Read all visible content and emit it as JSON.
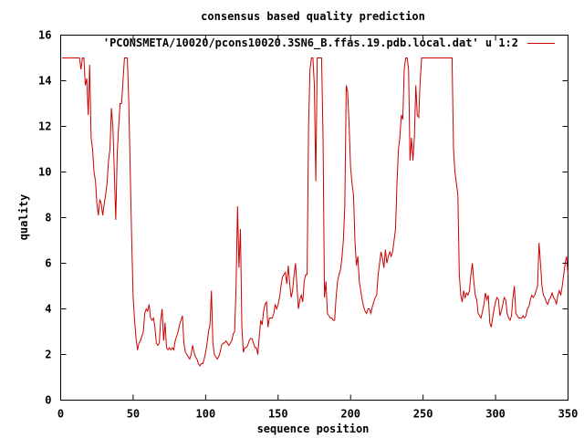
{
  "chart_data": {
    "type": "line",
    "title": "consensus based quality prediction",
    "xlabel": "sequence position",
    "ylabel": "quality",
    "xlim": [
      0,
      350
    ],
    "ylim": [
      0,
      16
    ],
    "x_ticks": [
      0,
      50,
      100,
      150,
      200,
      250,
      300,
      350
    ],
    "y_ticks": [
      0,
      2,
      4,
      6,
      8,
      10,
      12,
      14,
      16
    ],
    "legend_position": "top-right",
    "line_color": "#cc0000",
    "series": [
      {
        "name": "'PCONSMETA/10020/pcons10020.3SN6_B.ffas.19.pdb.local.dat' u 1:2",
        "points": [
          [
            1,
            15
          ],
          [
            13,
            15
          ],
          [
            14,
            14.5
          ],
          [
            15,
            15
          ],
          [
            16,
            15
          ],
          [
            17,
            13.8
          ],
          [
            18,
            14.1
          ],
          [
            19,
            12.5
          ],
          [
            20,
            14.7
          ],
          [
            21,
            11.5
          ],
          [
            22,
            11.0
          ],
          [
            23,
            10.0
          ],
          [
            24,
            9.6
          ],
          [
            25,
            8.6
          ],
          [
            26,
            8.1
          ],
          [
            27,
            8.8
          ],
          [
            28,
            8.6
          ],
          [
            29,
            8.1
          ],
          [
            30,
            8.6
          ],
          [
            31,
            9.0
          ],
          [
            32,
            9.5
          ],
          [
            33,
            10.5
          ],
          [
            34,
            11.0
          ],
          [
            35,
            12.8
          ],
          [
            36,
            12.0
          ],
          [
            37,
            10.0
          ],
          [
            38,
            7.9
          ],
          [
            39,
            10.8
          ],
          [
            40,
            12.0
          ],
          [
            41,
            13.0
          ],
          [
            42,
            13.0
          ],
          [
            43,
            14.0
          ],
          [
            44,
            15
          ],
          [
            46,
            15
          ],
          [
            47,
            13.0
          ],
          [
            48,
            10.0
          ],
          [
            49,
            7.0
          ],
          [
            50,
            4.5
          ],
          [
            51,
            3.5
          ],
          [
            52,
            2.7
          ],
          [
            53,
            2.2
          ],
          [
            54,
            2.5
          ],
          [
            55,
            2.6
          ],
          [
            56,
            2.8
          ],
          [
            57,
            3.0
          ],
          [
            58,
            3.8
          ],
          [
            59,
            4.0
          ],
          [
            60,
            3.9
          ],
          [
            61,
            4.2
          ],
          [
            62,
            3.6
          ],
          [
            63,
            3.5
          ],
          [
            64,
            3.6
          ],
          [
            65,
            3.2
          ],
          [
            66,
            2.5
          ],
          [
            67,
            2.4
          ],
          [
            68,
            2.5
          ],
          [
            69,
            3.5
          ],
          [
            70,
            4.0
          ],
          [
            71,
            2.6
          ],
          [
            72,
            3.4
          ],
          [
            73,
            2.3
          ],
          [
            74,
            2.2
          ],
          [
            75,
            2.3
          ],
          [
            76,
            2.2
          ],
          [
            77,
            2.3
          ],
          [
            78,
            2.2
          ],
          [
            79,
            2.6
          ],
          [
            80,
            2.8
          ],
          [
            81,
            3.0
          ],
          [
            82,
            3.3
          ],
          [
            83,
            3.5
          ],
          [
            84,
            3.7
          ],
          [
            85,
            2.5
          ],
          [
            86,
            2.1
          ],
          [
            87,
            2.0
          ],
          [
            88,
            1.9
          ],
          [
            89,
            1.8
          ],
          [
            90,
            2.0
          ],
          [
            91,
            2.4
          ],
          [
            92,
            2.1
          ],
          [
            93,
            1.9
          ],
          [
            94,
            1.8
          ],
          [
            95,
            1.6
          ],
          [
            96,
            1.5
          ],
          [
            97,
            1.6
          ],
          [
            98,
            1.6
          ],
          [
            99,
            1.8
          ],
          [
            100,
            2.1
          ],
          [
            101,
            2.5
          ],
          [
            102,
            3.0
          ],
          [
            103,
            3.3
          ],
          [
            104,
            4.8
          ],
          [
            105,
            2.5
          ],
          [
            106,
            2.0
          ],
          [
            107,
            1.9
          ],
          [
            108,
            1.8
          ],
          [
            109,
            1.9
          ],
          [
            110,
            2.1
          ],
          [
            111,
            2.4
          ],
          [
            112,
            2.5
          ],
          [
            113,
            2.5
          ],
          [
            114,
            2.6
          ],
          [
            115,
            2.5
          ],
          [
            116,
            2.4
          ],
          [
            117,
            2.5
          ],
          [
            118,
            2.6
          ],
          [
            119,
            2.9
          ],
          [
            120,
            3.0
          ],
          [
            121,
            5.0
          ],
          [
            122,
            8.5
          ],
          [
            123,
            5.8
          ],
          [
            124,
            7.5
          ],
          [
            125,
            3.2
          ],
          [
            126,
            2.1
          ],
          [
            127,
            2.3
          ],
          [
            128,
            2.3
          ],
          [
            129,
            2.4
          ],
          [
            130,
            2.6
          ],
          [
            131,
            2.7
          ],
          [
            132,
            2.7
          ],
          [
            133,
            2.5
          ],
          [
            134,
            2.3
          ],
          [
            135,
            2.3
          ],
          [
            136,
            2.0
          ],
          [
            137,
            2.8
          ],
          [
            138,
            3.5
          ],
          [
            139,
            3.3
          ],
          [
            140,
            3.9
          ],
          [
            141,
            4.2
          ],
          [
            142,
            4.3
          ],
          [
            143,
            3.2
          ],
          [
            144,
            3.6
          ],
          [
            145,
            3.6
          ],
          [
            146,
            3.6
          ],
          [
            147,
            3.8
          ],
          [
            148,
            4.2
          ],
          [
            149,
            4.0
          ],
          [
            150,
            4.2
          ],
          [
            151,
            4.5
          ],
          [
            152,
            5.0
          ],
          [
            153,
            5.4
          ],
          [
            154,
            5.5
          ],
          [
            155,
            5.6
          ],
          [
            156,
            5.1
          ],
          [
            157,
            5.9
          ],
          [
            158,
            5.1
          ],
          [
            159,
            4.5
          ],
          [
            160,
            4.8
          ],
          [
            161,
            5.5
          ],
          [
            162,
            6.0
          ],
          [
            163,
            5.0
          ],
          [
            164,
            4.0
          ],
          [
            165,
            4.4
          ],
          [
            166,
            4.6
          ],
          [
            167,
            4.3
          ],
          [
            168,
            5.2
          ],
          [
            169,
            5.5
          ],
          [
            170,
            5.5
          ],
          [
            171,
            12.0
          ],
          [
            172,
            14.5
          ],
          [
            173,
            15
          ],
          [
            174,
            15
          ],
          [
            175,
            13.8
          ],
          [
            176,
            9.6
          ],
          [
            177,
            15
          ],
          [
            180,
            15
          ],
          [
            181,
            11.5
          ],
          [
            182,
            4.5
          ],
          [
            183,
            5.2
          ],
          [
            184,
            3.8
          ],
          [
            185,
            3.7
          ],
          [
            186,
            3.6
          ],
          [
            187,
            3.6
          ],
          [
            188,
            3.5
          ],
          [
            189,
            3.5
          ],
          [
            190,
            4.5
          ],
          [
            191,
            5.2
          ],
          [
            192,
            5.5
          ],
          [
            193,
            5.7
          ],
          [
            194,
            6.2
          ],
          [
            195,
            7.0
          ],
          [
            196,
            8.5
          ],
          [
            197,
            13.8
          ],
          [
            198,
            13.5
          ],
          [
            199,
            12.0
          ],
          [
            200,
            10.2
          ],
          [
            201,
            9.5
          ],
          [
            202,
            9.0
          ],
          [
            203,
            7.0
          ],
          [
            204,
            5.9
          ],
          [
            205,
            6.3
          ],
          [
            206,
            5.2
          ],
          [
            207,
            4.8
          ],
          [
            208,
            4.4
          ],
          [
            209,
            4.1
          ],
          [
            210,
            3.9
          ],
          [
            211,
            3.8
          ],
          [
            212,
            4.0
          ],
          [
            213,
            4.0
          ],
          [
            214,
            3.8
          ],
          [
            215,
            4.1
          ],
          [
            216,
            4.3
          ],
          [
            217,
            4.5
          ],
          [
            218,
            4.6
          ],
          [
            219,
            5.5
          ],
          [
            220,
            6.0
          ],
          [
            221,
            6.5
          ],
          [
            222,
            6.2
          ],
          [
            223,
            5.8
          ],
          [
            224,
            6.6
          ],
          [
            225,
            6.0
          ],
          [
            226,
            6.3
          ],
          [
            227,
            6.5
          ],
          [
            228,
            6.3
          ],
          [
            229,
            6.5
          ],
          [
            230,
            7.0
          ],
          [
            231,
            7.5
          ],
          [
            232,
            9.5
          ],
          [
            233,
            11.0
          ],
          [
            234,
            11.5
          ],
          [
            235,
            12.5
          ],
          [
            236,
            12.3
          ],
          [
            237,
            14.5
          ],
          [
            238,
            15
          ],
          [
            239,
            15
          ],
          [
            240,
            14.5
          ],
          [
            241,
            10.5
          ],
          [
            242,
            11.5
          ],
          [
            243,
            10.5
          ],
          [
            244,
            11.5
          ],
          [
            245,
            13.8
          ],
          [
            246,
            12.5
          ],
          [
            247,
            12.4
          ],
          [
            248,
            14.0
          ],
          [
            249,
            15
          ],
          [
            252,
            15
          ],
          [
            270,
            15
          ],
          [
            271,
            11.0
          ],
          [
            272,
            10.0
          ],
          [
            273,
            9.5
          ],
          [
            274,
            9.0
          ],
          [
            275,
            5.5
          ],
          [
            276,
            4.6
          ],
          [
            277,
            4.3
          ],
          [
            278,
            4.8
          ],
          [
            279,
            4.5
          ],
          [
            280,
            4.7
          ],
          [
            281,
            4.6
          ],
          [
            282,
            4.8
          ],
          [
            283,
            5.5
          ],
          [
            284,
            6.0
          ],
          [
            285,
            5.2
          ],
          [
            286,
            4.6
          ],
          [
            287,
            4.4
          ],
          [
            288,
            3.8
          ],
          [
            289,
            3.7
          ],
          [
            290,
            3.6
          ],
          [
            291,
            3.9
          ],
          [
            292,
            4.2
          ],
          [
            293,
            4.7
          ],
          [
            294,
            4.4
          ],
          [
            295,
            4.6
          ],
          [
            296,
            3.4
          ],
          [
            297,
            3.2
          ],
          [
            298,
            3.6
          ],
          [
            299,
            4.0
          ],
          [
            300,
            4.3
          ],
          [
            301,
            4.5
          ],
          [
            302,
            4.4
          ],
          [
            303,
            3.7
          ],
          [
            304,
            3.9
          ],
          [
            305,
            4.2
          ],
          [
            306,
            4.5
          ],
          [
            307,
            4.4
          ],
          [
            308,
            3.8
          ],
          [
            309,
            3.6
          ],
          [
            310,
            3.5
          ],
          [
            311,
            3.7
          ],
          [
            312,
            4.5
          ],
          [
            313,
            5.0
          ],
          [
            314,
            3.8
          ],
          [
            315,
            3.7
          ],
          [
            316,
            3.6
          ],
          [
            317,
            3.6
          ],
          [
            318,
            3.6
          ],
          [
            319,
            3.7
          ],
          [
            320,
            3.6
          ],
          [
            321,
            3.7
          ],
          [
            322,
            4.0
          ],
          [
            323,
            4.1
          ],
          [
            324,
            4.4
          ],
          [
            325,
            4.6
          ],
          [
            326,
            4.5
          ],
          [
            327,
            4.6
          ],
          [
            328,
            4.8
          ],
          [
            329,
            5.0
          ],
          [
            330,
            6.9
          ],
          [
            331,
            6.0
          ],
          [
            332,
            5.0
          ],
          [
            333,
            4.6
          ],
          [
            334,
            4.5
          ],
          [
            335,
            4.3
          ],
          [
            336,
            4.2
          ],
          [
            337,
            4.4
          ],
          [
            338,
            4.5
          ],
          [
            339,
            4.7
          ],
          [
            340,
            4.5
          ],
          [
            341,
            4.4
          ],
          [
            342,
            4.2
          ],
          [
            343,
            4.6
          ],
          [
            344,
            4.8
          ],
          [
            345,
            4.6
          ],
          [
            346,
            5.0
          ],
          [
            347,
            5.5
          ],
          [
            348,
            6.0
          ],
          [
            349,
            6.3
          ],
          [
            350,
            5.5
          ]
        ]
      }
    ]
  }
}
